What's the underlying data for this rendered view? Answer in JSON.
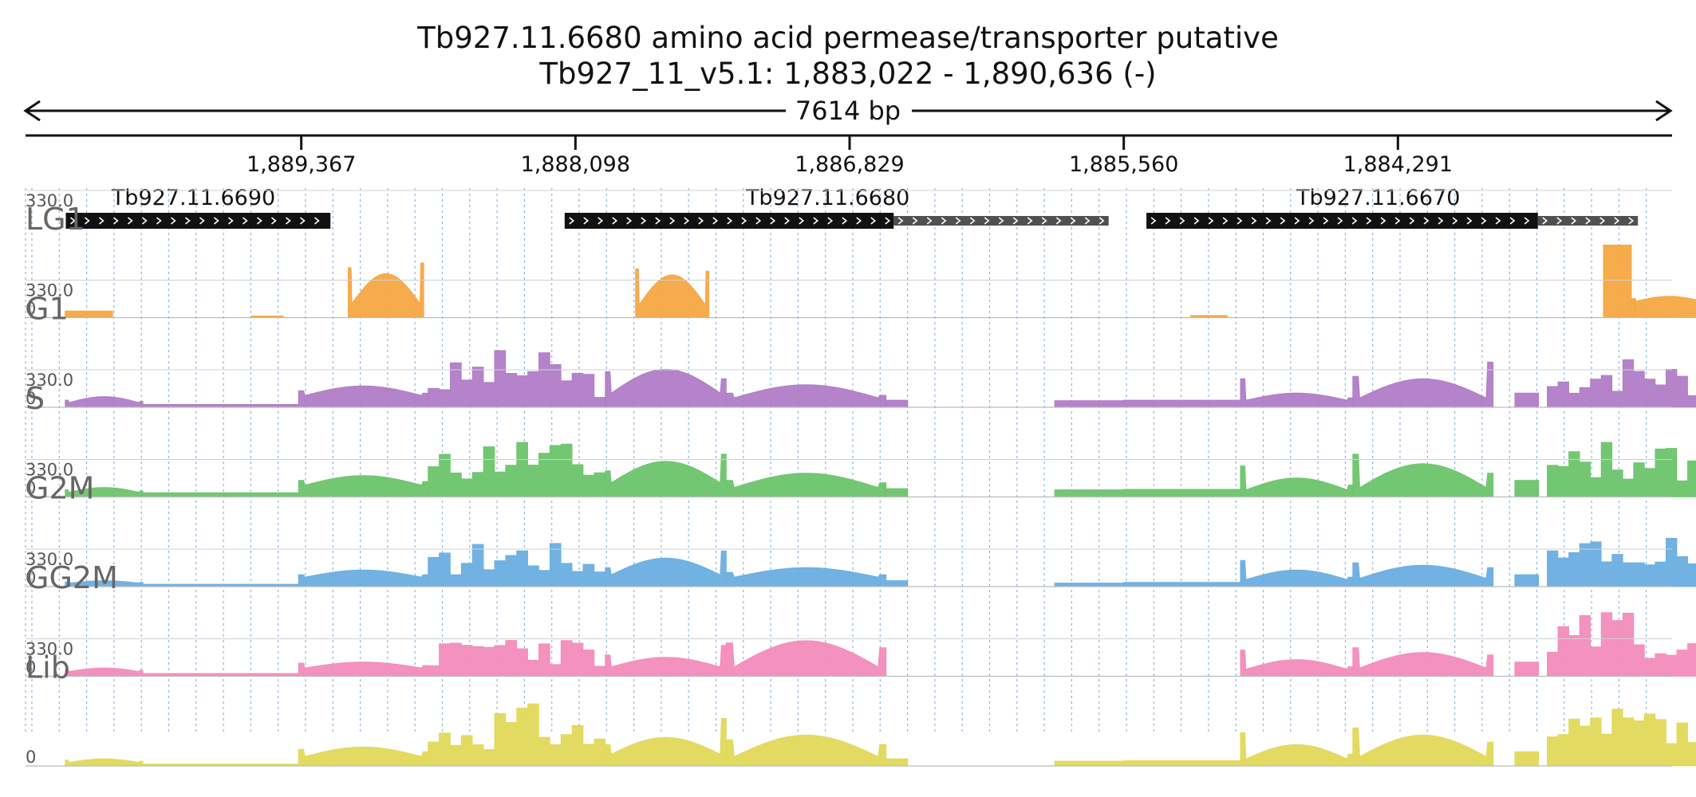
{
  "header": {
    "title": "Tb927.11.6680  amino acid permease/transporter  putative",
    "region": "Tb927_11_v5.1: 1,883,022 - 1,890,636 (-)",
    "span": "7614 bp"
  },
  "chart_data": {
    "type": "area",
    "strand": "-",
    "x_start": 1890636,
    "x_end": 1883022,
    "ticks": [
      {
        "pos": 1889367,
        "label": "1,889,367"
      },
      {
        "pos": 1888098,
        "label": "1,888,098"
      },
      {
        "pos": 1886829,
        "label": "1,886,829"
      },
      {
        "pos": 1885560,
        "label": "1,885,560"
      },
      {
        "pos": 1884291,
        "label": "1,884,291"
      }
    ],
    "genes": [
      {
        "name": "Tb927.11.6690",
        "cds": [
          1890457,
          1889232
        ],
        "utr": [
          1889232,
          1889232
        ],
        "label_pos": 1889866
      },
      {
        "name": "Tb927.11.6680",
        "cds": [
          1888148,
          1886625
        ],
        "utr": [
          1886625,
          1885630
        ],
        "label_pos": 1886930
      },
      {
        "name": "Tb927.11.6670",
        "cds": [
          1885455,
          1883643
        ],
        "utr": [
          1883643,
          1883180
        ],
        "label_pos": 1884382
      }
    ],
    "ylim": [
      0,
      330.0
    ],
    "ymax_label": "330.0",
    "ymin_label": "0",
    "tracks": [
      {
        "name": "LG1",
        "color": "#f5a742",
        "label_color": "#e69138",
        "segments": [
          {
            "from": 1890460,
            "to": 1890240,
            "shape": "flat",
            "v": 28
          },
          {
            "from": 1889600,
            "to": 1889450,
            "shape": "flat",
            "v": 7
          },
          {
            "from": 1889150,
            "to": 1888800,
            "shape": "hump",
            "v0": 210,
            "peak": 185,
            "v1": 230,
            "base": 60
          },
          {
            "from": 1887820,
            "to": 1887480,
            "shape": "hump",
            "v0": 205,
            "peak": 180,
            "v1": 195,
            "base": 55
          },
          {
            "from": 1885250,
            "to": 1885080,
            "shape": "flat",
            "v": 9
          },
          {
            "from": 1883340,
            "to": 1883210,
            "shape": "flat",
            "v": 305
          },
          {
            "from": 1883210,
            "to": 1883190,
            "shape": "flat",
            "v": 80
          },
          {
            "from": 1883200,
            "to": 1882870,
            "shape": "hump",
            "v0": 70,
            "peak": 90,
            "v1": 80,
            "base": 70
          },
          {
            "from": 1882860,
            "to": 1882810,
            "shape": "flat",
            "v": 310
          }
        ]
      },
      {
        "name": "G1",
        "color": "#b07cc6",
        "label_color": "#8e5aa8",
        "segments": [
          {
            "from": 1890460,
            "to": 1890100,
            "shape": "hump",
            "v0": 30,
            "peak": 45,
            "v1": 25,
            "base": 20
          },
          {
            "from": 1890100,
            "to": 1889380,
            "shape": "flat",
            "v": 12
          },
          {
            "from": 1889380,
            "to": 1888780,
            "shape": "hump",
            "v0": 70,
            "peak": 90,
            "v1": 60,
            "base": 50
          },
          {
            "from": 1888780,
            "to": 1887960,
            "shape": "jagged",
            "v": 250,
            "seed": 3
          },
          {
            "from": 1887960,
            "to": 1887400,
            "shape": "hump",
            "v0": 150,
            "peak": 160,
            "v1": 120,
            "base": 60
          },
          {
            "from": 1887400,
            "to": 1886660,
            "shape": "hump",
            "v0": 60,
            "peak": 95,
            "v1": 50,
            "base": 40
          },
          {
            "from": 1886660,
            "to": 1886560,
            "shape": "flat",
            "v": 30
          },
          {
            "from": 1885880,
            "to": 1885560,
            "shape": "flat",
            "v": 28
          },
          {
            "from": 1885560,
            "to": 1885020,
            "shape": "flat",
            "v": 30
          },
          {
            "from": 1885020,
            "to": 1884500,
            "shape": "hump",
            "v0": 120,
            "peak": 60,
            "v1": 40,
            "base": 30
          },
          {
            "from": 1884500,
            "to": 1883850,
            "shape": "hump",
            "v0": 130,
            "peak": 120,
            "v1": 190,
            "base": 40
          },
          {
            "from": 1883750,
            "to": 1883640,
            "shape": "flat",
            "v": 60
          },
          {
            "from": 1883600,
            "to": 1882850,
            "shape": "jagged",
            "v": 220,
            "seed": 7
          }
        ]
      },
      {
        "name": "S",
        "color": "#6cc46c",
        "label_color": "#4f9d4f",
        "segments": [
          {
            "from": 1890460,
            "to": 1890100,
            "shape": "hump",
            "v0": 30,
            "peak": 40,
            "v1": 25,
            "base": 20
          },
          {
            "from": 1890100,
            "to": 1889380,
            "shape": "flat",
            "v": 18
          },
          {
            "from": 1889380,
            "to": 1888780,
            "shape": "hump",
            "v0": 70,
            "peak": 90,
            "v1": 65,
            "base": 50
          },
          {
            "from": 1888780,
            "to": 1887960,
            "shape": "jagged",
            "v": 270,
            "seed": 11
          },
          {
            "from": 1887960,
            "to": 1887400,
            "shape": "hump",
            "v0": 110,
            "peak": 150,
            "v1": 180,
            "base": 60
          },
          {
            "from": 1887400,
            "to": 1886660,
            "shape": "hump",
            "v0": 70,
            "peak": 100,
            "v1": 60,
            "base": 40
          },
          {
            "from": 1886660,
            "to": 1886560,
            "shape": "flat",
            "v": 35
          },
          {
            "from": 1885880,
            "to": 1885560,
            "shape": "flat",
            "v": 30
          },
          {
            "from": 1885560,
            "to": 1885020,
            "shape": "flat",
            "v": 32
          },
          {
            "from": 1885020,
            "to": 1884500,
            "shape": "hump",
            "v0": 130,
            "peak": 80,
            "v1": 50,
            "base": 30
          },
          {
            "from": 1884500,
            "to": 1883850,
            "shape": "hump",
            "v0": 180,
            "peak": 140,
            "v1": 100,
            "base": 40
          },
          {
            "from": 1883750,
            "to": 1883640,
            "shape": "flat",
            "v": 70
          },
          {
            "from": 1883600,
            "to": 1882850,
            "shape": "jagged",
            "v": 260,
            "seed": 13
          }
        ]
      },
      {
        "name": "G2M",
        "color": "#6aaee0",
        "label_color": "#4a8cc0",
        "segments": [
          {
            "from": 1890460,
            "to": 1890100,
            "shape": "hump",
            "v0": 20,
            "peak": 25,
            "v1": 18,
            "base": 15
          },
          {
            "from": 1890100,
            "to": 1889380,
            "shape": "flat",
            "v": 10
          },
          {
            "from": 1889380,
            "to": 1888780,
            "shape": "hump",
            "v0": 50,
            "peak": 70,
            "v1": 50,
            "base": 40
          },
          {
            "from": 1888780,
            "to": 1887960,
            "shape": "jagged",
            "v": 210,
            "seed": 17
          },
          {
            "from": 1887960,
            "to": 1887400,
            "shape": "hump",
            "v0": 80,
            "peak": 120,
            "v1": 150,
            "base": 50
          },
          {
            "from": 1887400,
            "to": 1886660,
            "shape": "hump",
            "v0": 60,
            "peak": 80,
            "v1": 50,
            "base": 40
          },
          {
            "from": 1886660,
            "to": 1886560,
            "shape": "flat",
            "v": 25
          },
          {
            "from": 1885880,
            "to": 1885560,
            "shape": "flat",
            "v": 15
          },
          {
            "from": 1885560,
            "to": 1885020,
            "shape": "flat",
            "v": 18
          },
          {
            "from": 1885020,
            "to": 1884500,
            "shape": "hump",
            "v0": 110,
            "peak": 70,
            "v1": 40,
            "base": 30
          },
          {
            "from": 1884500,
            "to": 1883850,
            "shape": "hump",
            "v0": 100,
            "peak": 90,
            "v1": 80,
            "base": 35
          },
          {
            "from": 1883750,
            "to": 1883640,
            "shape": "flat",
            "v": 50
          },
          {
            "from": 1883600,
            "to": 1882850,
            "shape": "jagged",
            "v": 240,
            "seed": 19
          }
        ]
      },
      {
        "name": "GG2M",
        "color": "#f28cbb",
        "label_color": "#d6608f",
        "segments": [
          {
            "from": 1890460,
            "to": 1890100,
            "shape": "hump",
            "v0": 28,
            "peak": 35,
            "v1": 25,
            "base": 20
          },
          {
            "from": 1890100,
            "to": 1889380,
            "shape": "flat",
            "v": 12
          },
          {
            "from": 1889380,
            "to": 1888780,
            "shape": "hump",
            "v0": 55,
            "peak": 60,
            "v1": 45,
            "base": 35
          },
          {
            "from": 1888780,
            "to": 1887960,
            "shape": "jagged",
            "v": 200,
            "seed": 23
          },
          {
            "from": 1887960,
            "to": 1887400,
            "shape": "hump",
            "v0": 90,
            "peak": 80,
            "v1": 130,
            "base": 40
          },
          {
            "from": 1887400,
            "to": 1886660,
            "shape": "hump",
            "v0": 140,
            "peak": 150,
            "v1": 120,
            "base": 40
          },
          {
            "from": 1885020,
            "to": 1884500,
            "shape": "hump",
            "v0": 110,
            "peak": 70,
            "v1": 40,
            "base": 30
          },
          {
            "from": 1884500,
            "to": 1883850,
            "shape": "hump",
            "v0": 120,
            "peak": 100,
            "v1": 90,
            "base": 35
          },
          {
            "from": 1883750,
            "to": 1883640,
            "shape": "flat",
            "v": 60
          },
          {
            "from": 1883600,
            "to": 1882850,
            "shape": "jagged",
            "v": 300,
            "seed": 29
          }
        ]
      },
      {
        "name": "Lib",
        "color": "#e2d85a",
        "label_color": "#b8ae3a",
        "segments": [
          {
            "from": 1890460,
            "to": 1890100,
            "shape": "hump",
            "v0": 25,
            "peak": 30,
            "v1": 20,
            "base": 15
          },
          {
            "from": 1890100,
            "to": 1889380,
            "shape": "flat",
            "v": 8
          },
          {
            "from": 1889380,
            "to": 1888780,
            "shape": "hump",
            "v0": 70,
            "peak": 80,
            "v1": 60,
            "base": 40
          },
          {
            "from": 1888780,
            "to": 1887960,
            "shape": "jagged",
            "v": 270,
            "seed": 31
          },
          {
            "from": 1887960,
            "to": 1887400,
            "shape": "hump",
            "v0": 90,
            "peak": 120,
            "v1": 200,
            "base": 50
          },
          {
            "from": 1887400,
            "to": 1886660,
            "shape": "hump",
            "v0": 110,
            "peak": 130,
            "v1": 90,
            "base": 40
          },
          {
            "from": 1886660,
            "to": 1886560,
            "shape": "flat",
            "v": 30
          },
          {
            "from": 1885880,
            "to": 1885560,
            "shape": "flat",
            "v": 20
          },
          {
            "from": 1885560,
            "to": 1885020,
            "shape": "flat",
            "v": 22
          },
          {
            "from": 1885020,
            "to": 1884500,
            "shape": "hump",
            "v0": 140,
            "peak": 90,
            "v1": 50,
            "base": 30
          },
          {
            "from": 1884500,
            "to": 1883850,
            "shape": "hump",
            "v0": 160,
            "peak": 130,
            "v1": 100,
            "base": 40
          },
          {
            "from": 1883750,
            "to": 1883640,
            "shape": "flat",
            "v": 60
          },
          {
            "from": 1883600,
            "to": 1882850,
            "shape": "jagged",
            "v": 250,
            "seed": 37
          }
        ]
      }
    ]
  }
}
